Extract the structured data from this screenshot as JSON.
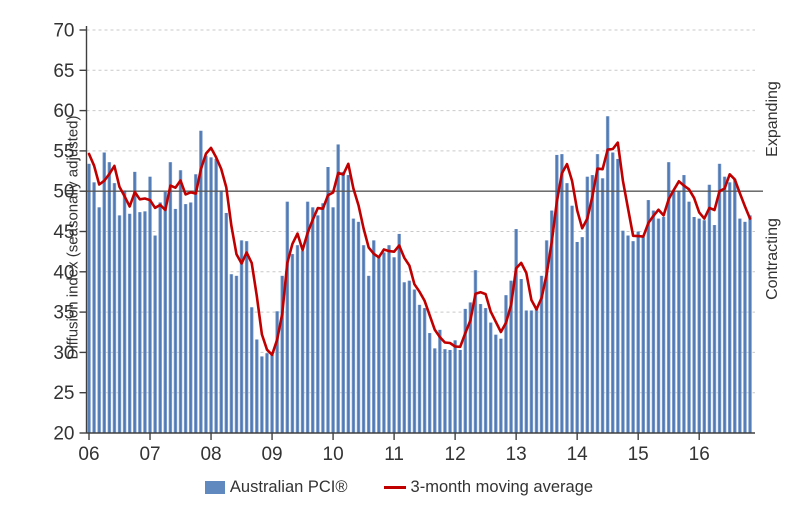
{
  "chart_data": {
    "type": "bar",
    "title": "",
    "ylabel": "Diffusion index (seasonally adjusted)",
    "xlabel": "",
    "right_label_top": "Expanding",
    "right_label_bottom": "Contracting",
    "ylim": [
      20,
      70
    ],
    "y_ticks": [
      20,
      25,
      30,
      35,
      40,
      45,
      50,
      55,
      60,
      65,
      70
    ],
    "x_tick_labels": [
      "06",
      "07",
      "08",
      "09",
      "10",
      "11",
      "12",
      "13",
      "14",
      "15",
      "16"
    ],
    "reference_line": 50,
    "grid": "dashed horizontal",
    "legend_position": "bottom center",
    "months_start": "Jan 2006",
    "months_end": "Nov 2016",
    "colors": {
      "bar": "#6089c0",
      "bar_edge_light": "#96aed3",
      "bar_core": "#4f7ab5",
      "line": "#c00000",
      "axis": "#404040",
      "gridline": "#c9c9c9",
      "text": "#333333"
    },
    "series": [
      {
        "name": "Australian PCI®",
        "type": "bar",
        "color": "#6089c0",
        "values": [
          53.4,
          51.1,
          48.0,
          54.8,
          53.6,
          51.0,
          47.0,
          50.1,
          47.2,
          52.4,
          47.4,
          47.5,
          51.8,
          44.5,
          48.6,
          49.9,
          53.6,
          47.8,
          52.6,
          48.4,
          48.6,
          52.1,
          57.5,
          54.4,
          54.2,
          54.0,
          50.1,
          47.3,
          39.7,
          39.5,
          43.9,
          43.8,
          35.6,
          31.6,
          29.5,
          29.9,
          29.7,
          35.1,
          39.5,
          48.7,
          42.2,
          43.3,
          42.6,
          48.7,
          48.0,
          47.0,
          48.5,
          53.0,
          48.0,
          55.8,
          52.4,
          52.0,
          46.6,
          46.2,
          43.3,
          39.5,
          43.9,
          42.0,
          42.4,
          43.3,
          41.8,
          44.7,
          38.7,
          38.9,
          37.8,
          35.9,
          35.5,
          32.4,
          30.5,
          32.8,
          30.4,
          30.3,
          31.5,
          30.3,
          35.4,
          36.2,
          40.2,
          36.0,
          35.5,
          33.7,
          32.2,
          31.7,
          37.1,
          38.9,
          45.3,
          39.1,
          35.2,
          35.2,
          35.6,
          39.5,
          43.9,
          47.6,
          54.5,
          54.6,
          51.0,
          48.2,
          43.7,
          44.3,
          51.8,
          52.0,
          54.6,
          51.6,
          59.3,
          54.8,
          54.0,
          45.1,
          44.5,
          43.8,
          45.0,
          44.3,
          48.9,
          47.6,
          46.6,
          46.8,
          53.6,
          50.1,
          50.0,
          52.0,
          48.7,
          46.8,
          46.6,
          46.4,
          50.8,
          45.8,
          53.4,
          51.8,
          51.1,
          51.5,
          46.6,
          46.2,
          47.0
        ]
      },
      {
        "name": "3-month moving average",
        "type": "line",
        "color": "#c00000",
        "derived": "trailing 3-month mean of Australian PCI®",
        "pre_window_seed": [
          55.5,
          55.0
        ]
      }
    ],
    "legend": [
      "Australian PCI®",
      "3-month moving average"
    ]
  }
}
